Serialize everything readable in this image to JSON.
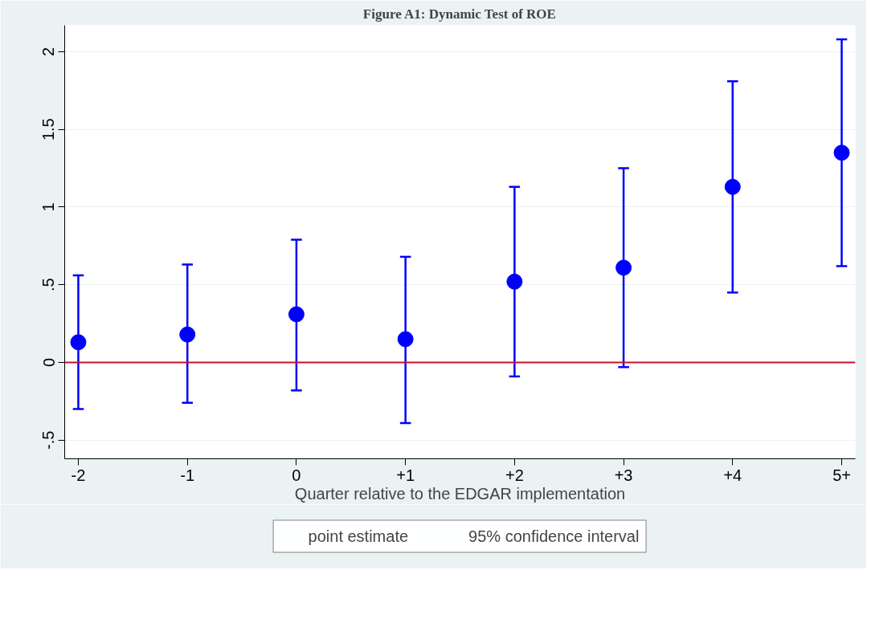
{
  "chart_data": {
    "type": "scatter",
    "title": "Figure A1: Dynamic Test of ROE",
    "xlabel": "Quarter relative to the EDGAR implementation",
    "categories": [
      "-2",
      "-1",
      "0",
      "+1",
      "+2",
      "+3",
      "+4",
      "5+"
    ],
    "series": [
      {
        "name": "point estimate",
        "color": "#0000ff",
        "values": [
          0.13,
          0.18,
          0.31,
          0.15,
          0.52,
          0.61,
          1.13,
          1.35
        ],
        "errors": [
          [
            -0.3,
            0.56
          ],
          [
            -0.26,
            0.63
          ],
          [
            -0.18,
            0.79
          ],
          [
            -0.39,
            0.68
          ],
          [
            -0.09,
            1.13
          ],
          [
            -0.03,
            1.25
          ],
          [
            0.45,
            1.81
          ],
          [
            0.62,
            2.08
          ]
        ]
      }
    ],
    "annotations": [
      "95% confidence interval"
    ],
    "ylim": [
      -0.62,
      2.17
    ],
    "yticks": [
      {
        "value": -0.5,
        "label": "-.5"
      },
      0,
      {
        "value": 0.5,
        "label": ".5"
      },
      1,
      {
        "value": 1.5,
        "label": "1.5"
      },
      2
    ],
    "ref_lines": [
      {
        "axis": "y",
        "value": 0,
        "color": "#c8102e"
      }
    ],
    "grid": "y",
    "legend": "bottom",
    "marker": "circle"
  }
}
